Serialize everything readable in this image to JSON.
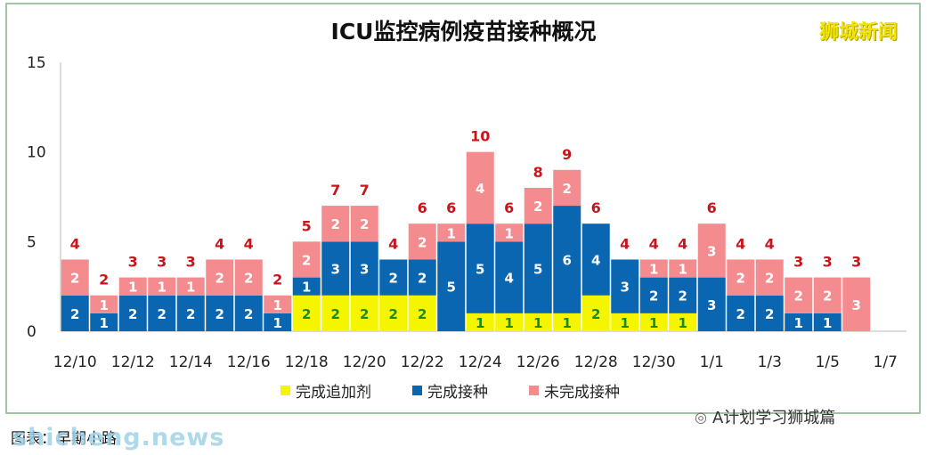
{
  "title": "ICU监控病例疫苗接种概况",
  "logo": "狮城新闻",
  "wechat_label": "A计划学习狮城篇",
  "caption": "图表：早期小路",
  "watermark": "shicheng.news",
  "colors": {
    "booster": "#f5f500",
    "complete": "#0a66b0",
    "incomplete": "#f48b8f",
    "total_label": "#c8151b",
    "seg_label_dark": "#ffffff",
    "seg_label_yellow": "#1a8a1a"
  },
  "legend": [
    {
      "key": "booster",
      "label": "完成追加剂"
    },
    {
      "key": "complete",
      "label": "完成接种"
    },
    {
      "key": "incomplete",
      "label": "未完成接种"
    }
  ],
  "chart_data": {
    "type": "bar",
    "stacked": true,
    "ylim": [
      0,
      15
    ],
    "yticks": [
      0,
      5,
      10,
      15
    ],
    "xtick_labels": [
      "12/10",
      "12/12",
      "12/14",
      "12/16",
      "12/18",
      "12/20",
      "12/22",
      "12/24",
      "12/26",
      "12/28",
      "12/30",
      "1/1",
      "1/3",
      "1/5",
      "1/7"
    ],
    "categories": [
      "12/10",
      "12/11",
      "12/12",
      "12/13",
      "12/14",
      "12/15",
      "12/16",
      "12/17",
      "12/18",
      "12/19",
      "12/20",
      "12/21",
      "12/22",
      "12/23",
      "12/24",
      "12/25",
      "12/26",
      "12/27",
      "12/28",
      "12/29",
      "12/30",
      "12/31",
      "1/1",
      "1/2",
      "1/3",
      "1/4",
      "1/5",
      "1/6"
    ],
    "series": [
      {
        "name": "完成追加剂",
        "key": "booster",
        "values": [
          0,
          0,
          0,
          0,
          0,
          0,
          0,
          0,
          2,
          2,
          2,
          2,
          2,
          0,
          1,
          1,
          1,
          1,
          2,
          1,
          1,
          1,
          0,
          0,
          0,
          0,
          0,
          0
        ]
      },
      {
        "name": "完成接种",
        "key": "complete",
        "values": [
          2,
          1,
          2,
          2,
          2,
          2,
          2,
          1,
          1,
          3,
          3,
          2,
          2,
          5,
          5,
          4,
          5,
          6,
          4,
          3,
          2,
          2,
          3,
          2,
          2,
          1,
          1,
          0
        ]
      },
      {
        "name": "未完成接种",
        "key": "incomplete",
        "values": [
          2,
          1,
          1,
          1,
          1,
          2,
          2,
          1,
          2,
          2,
          2,
          0,
          2,
          1,
          4,
          1,
          2,
          2,
          0,
          0,
          1,
          1,
          3,
          2,
          2,
          2,
          2,
          3
        ]
      }
    ],
    "totals": [
      4,
      2,
      3,
      3,
      3,
      4,
      4,
      2,
      5,
      7,
      7,
      4,
      6,
      6,
      10,
      6,
      8,
      9,
      6,
      4,
      4,
      4,
      6,
      4,
      4,
      3,
      3,
      3
    ]
  }
}
